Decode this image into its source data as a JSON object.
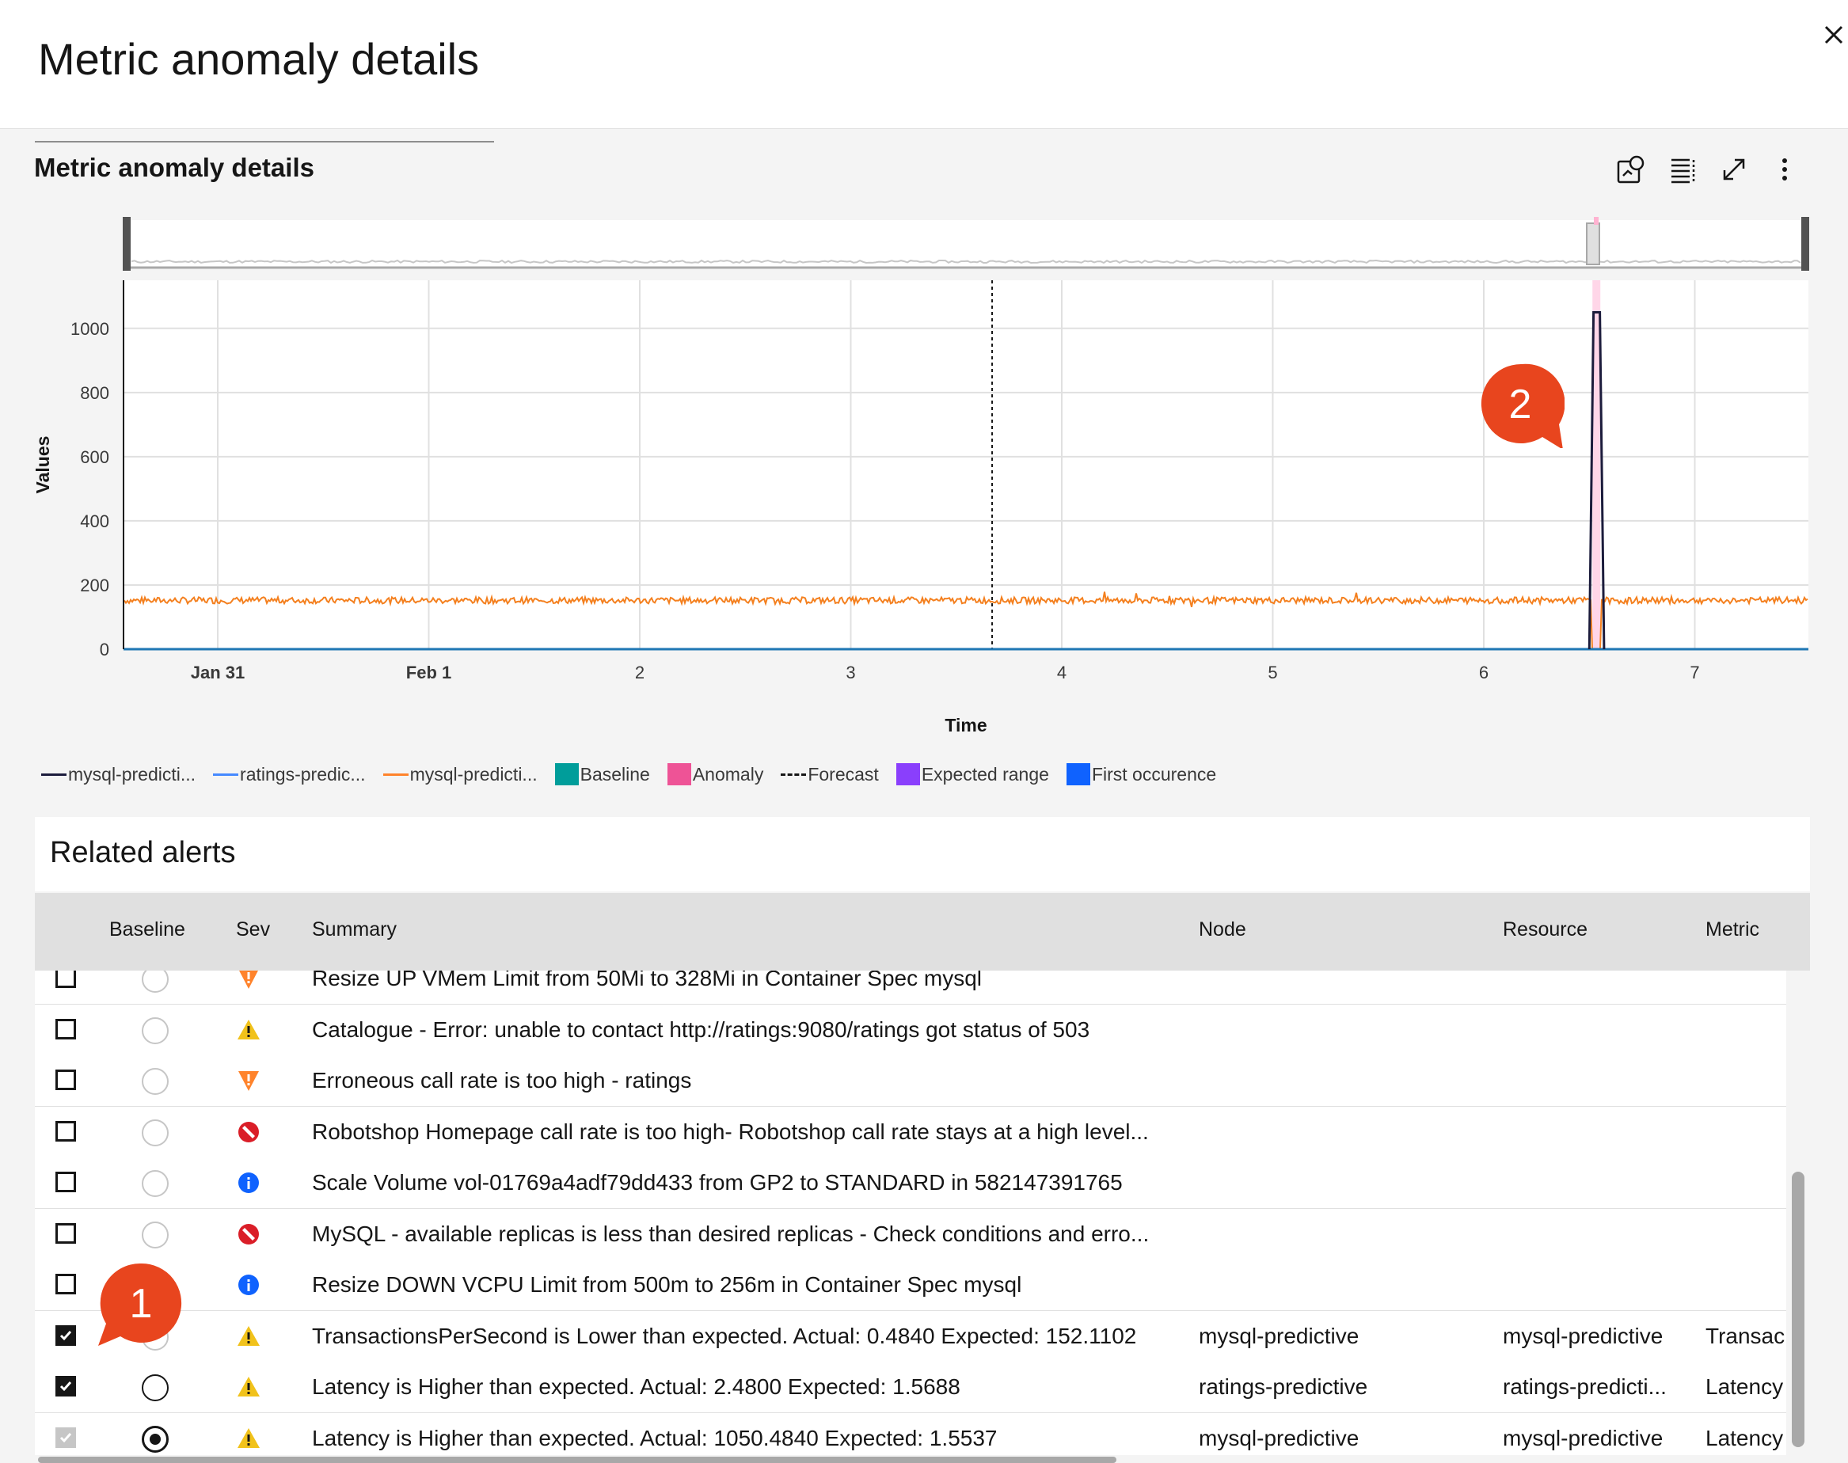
{
  "modal": {
    "title": "Metric anomaly details",
    "close_icon": "close-icon"
  },
  "section": {
    "title": "Metric anomaly details",
    "toolbar_icons": [
      "annotate-icon",
      "table-view-icon",
      "maximize-icon",
      "overflow-menu-icon"
    ]
  },
  "chart_data": {
    "type": "line",
    "title": "Metric anomaly details",
    "xlabel": "Time",
    "ylabel": "Values",
    "ylim": [
      0,
      1150
    ],
    "y_ticks": [
      "0",
      "200",
      "400",
      "600",
      "800",
      "1000"
    ],
    "x_ticks": [
      "Jan 31",
      "Feb 1",
      "2",
      "3",
      "4",
      "5",
      "6",
      "7"
    ],
    "grid": true,
    "series": [
      {
        "name": "mysql-predicti...",
        "color": "#1c1c3c",
        "description": "spike at anomaly",
        "points": [
          [
            6.5,
            0
          ],
          [
            6.52,
            1050
          ],
          [
            6.55,
            1050
          ],
          [
            6.57,
            0
          ]
        ]
      },
      {
        "name": "ratings-predic...",
        "color": "#1f77b4",
        "points": [
          [
            0,
            1
          ],
          [
            7.6,
            1
          ]
        ]
      },
      {
        "name": "mysql-predicti...",
        "color": "#f4801f",
        "baseline": 152,
        "range": [
          130,
          175
        ]
      }
    ],
    "forecast_x": 3.67,
    "anomaly_x": 6.53,
    "legend": [
      {
        "label": "mysql-predicti...",
        "kind": "line",
        "color": "#1c1c3c"
      },
      {
        "label": "ratings-predic...",
        "kind": "line",
        "color": "#4589ff"
      },
      {
        "label": "mysql-predicti...",
        "kind": "line",
        "color": "#ff832b"
      },
      {
        "label": "Baseline",
        "kind": "box",
        "color": "#009d9a"
      },
      {
        "label": "Anomaly",
        "kind": "box",
        "color": "#ee5396"
      },
      {
        "label": "Forecast",
        "kind": "dash",
        "color": "#161616"
      },
      {
        "label": "Expected range",
        "kind": "box",
        "color": "#8a3ffc"
      },
      {
        "label": "First occurence",
        "kind": "box",
        "color": "#0f62fe"
      }
    ]
  },
  "badges": {
    "one": "1",
    "two": "2"
  },
  "alerts": {
    "title": "Related alerts",
    "columns": {
      "baseline": "Baseline",
      "sev": "Sev",
      "summary": "Summary",
      "node": "Node",
      "resource": "Resource",
      "metric": "Metric"
    },
    "rows": [
      {
        "checked": false,
        "radio": "empty",
        "sev": "minor",
        "summary": "Resize UP VMem Limit from 50Mi to 328Mi in Container Spec mysql",
        "node": "",
        "resource": "",
        "metric": ""
      },
      {
        "checked": false,
        "radio": "empty",
        "sev": "warning",
        "summary": "Catalogue - Error: unable to contact http://ratings:9080/ratings got status of 503",
        "node": "",
        "resource": "",
        "metric": ""
      },
      {
        "checked": false,
        "radio": "empty",
        "sev": "minor",
        "summary": "Erroneous call rate is too high - ratings",
        "node": "",
        "resource": "",
        "metric": ""
      },
      {
        "checked": false,
        "radio": "empty",
        "sev": "critical",
        "summary": "Robotshop Homepage call rate is too high- Robotshop call rate stays at a high level...",
        "node": "",
        "resource": "",
        "metric": ""
      },
      {
        "checked": false,
        "radio": "empty",
        "sev": "info",
        "summary": "Scale Volume vol-01769a4adf79dd433 from GP2 to STANDARD in 582147391765",
        "node": "",
        "resource": "",
        "metric": ""
      },
      {
        "checked": false,
        "radio": "empty",
        "sev": "critical",
        "summary": "MySQL - available replicas is less than desired replicas - Check conditions and erro...",
        "node": "",
        "resource": "",
        "metric": ""
      },
      {
        "checked": false,
        "radio": "empty",
        "sev": "info",
        "summary": "Resize DOWN VCPU Limit from 500m to 256m in Container Spec mysql",
        "node": "",
        "resource": "",
        "metric": ""
      },
      {
        "checked": true,
        "radio": "empty",
        "sev": "warning",
        "summary": "TransactionsPerSecond is Lower than expected. Actual: 0.4840 Expected: 152.1102",
        "node": "mysql-predictive",
        "resource": "mysql-predictive",
        "metric": "Transac"
      },
      {
        "checked": true,
        "radio": "dark",
        "sev": "warning",
        "summary": "Latency is Higher than expected. Actual: 2.4800 Expected: 1.5688",
        "node": "ratings-predictive",
        "resource": "ratings-predicti...",
        "metric": "Latency"
      },
      {
        "checked": true,
        "disabled": true,
        "radio": "selected",
        "sev": "warning",
        "summary": "Latency is Higher than expected. Actual: 1050.4840 Expected: 1.5537",
        "node": "mysql-predictive",
        "resource": "mysql-predictive",
        "metric": "Latency"
      }
    ]
  }
}
